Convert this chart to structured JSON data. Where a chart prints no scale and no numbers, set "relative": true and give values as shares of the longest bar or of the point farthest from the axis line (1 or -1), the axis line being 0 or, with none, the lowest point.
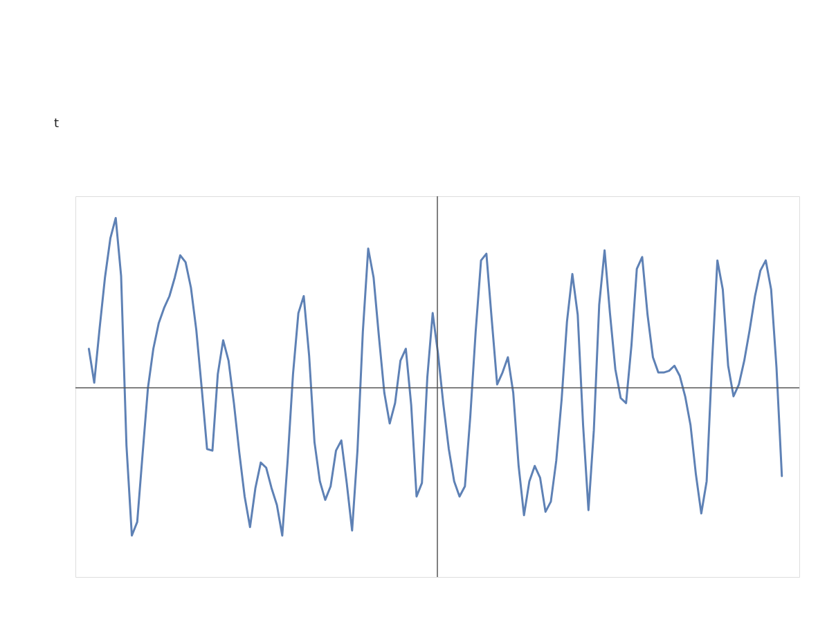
{
  "chart_data": {
    "type": "line",
    "relative": true,
    "annotations": [
      "t"
    ],
    "categories": [
      null,
      null,
      null,
      null,
      null,
      null,
      null,
      null,
      null,
      null,
      null,
      null,
      null,
      null,
      null,
      null,
      null,
      null,
      null,
      null,
      null,
      null,
      null,
      null,
      null,
      null,
      null,
      null,
      null,
      null,
      null,
      null,
      null,
      null,
      null,
      null,
      null,
      null,
      null,
      null,
      null,
      null,
      null,
      null,
      null,
      null,
      null,
      null,
      null,
      null,
      null,
      null,
      null,
      null,
      null,
      null,
      null,
      null,
      null,
      null,
      null,
      null,
      null,
      null,
      null,
      null,
      null,
      null,
      null,
      null,
      null,
      null,
      null,
      null,
      null,
      null,
      null,
      null,
      null,
      null,
      null,
      null,
      null,
      null,
      null,
      null,
      null,
      null,
      null,
      null,
      null,
      null,
      null,
      null,
      null,
      null,
      null,
      null,
      null,
      null,
      null,
      null,
      null,
      null,
      null,
      null,
      null,
      null,
      null,
      null,
      null,
      null,
      null,
      null,
      null,
      null,
      null,
      null,
      null,
      null,
      null,
      null,
      null,
      null,
      null,
      null,
      null,
      null,
      null,
      null
    ],
    "series": [
      {
        "color": "#5e81b5",
        "values": [
          0.23,
          0.03,
          0.35,
          0.65,
          0.88,
          1.0,
          0.66,
          -0.34,
          -0.87,
          -0.79,
          -0.39,
          0.0,
          0.23,
          0.38,
          0.47,
          0.54,
          0.65,
          0.78,
          0.74,
          0.59,
          0.34,
          0.0,
          -0.36,
          -0.37,
          0.08,
          0.28,
          0.16,
          -0.09,
          -0.38,
          -0.64,
          -0.82,
          -0.59,
          -0.44,
          -0.47,
          -0.59,
          -0.69,
          -0.87,
          -0.43,
          0.08,
          0.44,
          0.54,
          0.19,
          -0.32,
          -0.55,
          -0.66,
          -0.58,
          -0.37,
          -0.31,
          -0.56,
          -0.84,
          -0.37,
          0.33,
          0.82,
          0.65,
          0.3,
          -0.03,
          -0.21,
          -0.09,
          0.16,
          0.23,
          -0.1,
          -0.64,
          -0.56,
          0.06,
          0.44,
          0.2,
          -0.1,
          -0.36,
          -0.55,
          -0.64,
          -0.58,
          -0.17,
          0.33,
          0.75,
          0.79,
          0.4,
          0.02,
          0.09,
          0.18,
          -0.03,
          -0.46,
          -0.75,
          -0.55,
          -0.46,
          -0.53,
          -0.73,
          -0.67,
          -0.43,
          -0.07,
          0.39,
          0.67,
          0.43,
          -0.22,
          -0.72,
          -0.25,
          0.49,
          0.81,
          0.44,
          0.11,
          -0.06,
          -0.09,
          0.25,
          0.7,
          0.77,
          0.43,
          0.18,
          0.09,
          0.09,
          0.1,
          0.13,
          0.07,
          -0.05,
          -0.22,
          -0.51,
          -0.74,
          -0.55,
          0.15,
          0.75,
          0.58,
          0.13,
          -0.05,
          0.02,
          0.16,
          0.34,
          0.54,
          0.69,
          0.75,
          0.58,
          0.12,
          -0.52
        ]
      }
    ]
  }
}
